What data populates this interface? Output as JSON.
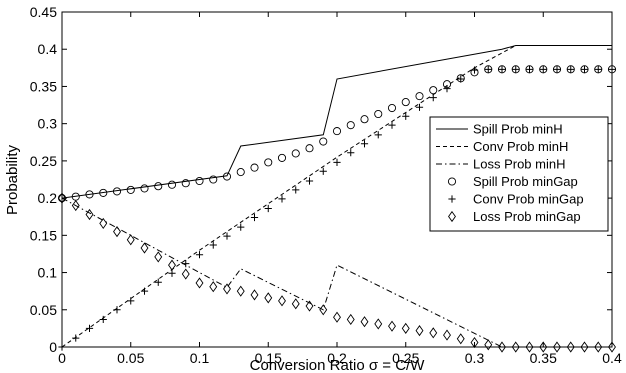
{
  "chart_data": {
    "type": "line",
    "title": "",
    "xlabel": "Conversion Ratio σ = C/W",
    "ylabel": "Probability",
    "xlim": [
      0,
      0.4
    ],
    "ylim": [
      0,
      0.45
    ],
    "grid": false,
    "legend_position": "right",
    "x_ticks": [
      "0",
      "0.05",
      "0.1",
      "0.15",
      "0.2",
      "0.25",
      "0.3",
      "0.35",
      "0.4"
    ],
    "y_ticks": [
      "0",
      "0.05",
      "0.1",
      "0.15",
      "0.2",
      "0.25",
      "0.3",
      "0.35",
      "0.4",
      "0.45"
    ],
    "series": [
      {
        "name": "Spill Prob minH",
        "style": "solid",
        "x": [
          0,
          0.12,
          0.13,
          0.19,
          0.2,
          0.32,
          0.33,
          0.4
        ],
        "y": [
          0.2,
          0.23,
          0.27,
          0.285,
          0.36,
          0.4,
          0.405,
          0.405
        ]
      },
      {
        "name": "Conv Prob minH",
        "style": "dashed",
        "x": [
          0,
          0.1,
          0.2,
          0.3,
          0.33,
          0.4
        ],
        "y": [
          0,
          0.13,
          0.255,
          0.375,
          0.405,
          0.405
        ]
      },
      {
        "name": "Loss Prob minH",
        "style": "dashdot",
        "x": [
          0,
          0.12,
          0.13,
          0.19,
          0.2,
          0.32,
          0.33,
          0.4
        ],
        "y": [
          0.2,
          0.08,
          0.105,
          0.05,
          0.11,
          0,
          0,
          0
        ]
      },
      {
        "name": "Spill Prob minGap",
        "marker": "circle",
        "x": [
          0,
          0.01,
          0.02,
          0.03,
          0.04,
          0.05,
          0.06,
          0.07,
          0.08,
          0.09,
          0.1,
          0.11,
          0.12,
          0.13,
          0.14,
          0.15,
          0.16,
          0.17,
          0.18,
          0.19,
          0.2,
          0.21,
          0.22,
          0.23,
          0.24,
          0.25,
          0.26,
          0.27,
          0.28,
          0.29,
          0.3,
          0.31,
          0.32,
          0.33,
          0.34,
          0.35,
          0.36,
          0.37,
          0.38,
          0.39,
          0.4
        ],
        "y": [
          0.2,
          0.202,
          0.205,
          0.207,
          0.209,
          0.211,
          0.213,
          0.216,
          0.218,
          0.22,
          0.223,
          0.225,
          0.229,
          0.235,
          0.241,
          0.248,
          0.254,
          0.26,
          0.267,
          0.276,
          0.29,
          0.298,
          0.306,
          0.313,
          0.321,
          0.329,
          0.337,
          0.345,
          0.353,
          0.361,
          0.369,
          0.373,
          0.373,
          0.373,
          0.373,
          0.373,
          0.373,
          0.373,
          0.373,
          0.373,
          0.373
        ]
      },
      {
        "name": "Conv Prob minGap",
        "marker": "plus",
        "x": [
          0,
          0.01,
          0.02,
          0.03,
          0.04,
          0.05,
          0.06,
          0.07,
          0.08,
          0.09,
          0.1,
          0.11,
          0.12,
          0.13,
          0.14,
          0.15,
          0.16,
          0.17,
          0.18,
          0.19,
          0.2,
          0.21,
          0.22,
          0.23,
          0.24,
          0.25,
          0.26,
          0.27,
          0.28,
          0.29,
          0.3,
          0.31,
          0.32,
          0.33,
          0.34,
          0.35,
          0.36,
          0.37,
          0.38,
          0.39,
          0.4
        ],
        "y": [
          0.0,
          0.012,
          0.025,
          0.037,
          0.05,
          0.062,
          0.075,
          0.087,
          0.099,
          0.112,
          0.124,
          0.137,
          0.149,
          0.161,
          0.174,
          0.186,
          0.199,
          0.211,
          0.223,
          0.236,
          0.248,
          0.261,
          0.273,
          0.285,
          0.298,
          0.31,
          0.322,
          0.335,
          0.347,
          0.36,
          0.372,
          0.373,
          0.373,
          0.373,
          0.373,
          0.373,
          0.373,
          0.373,
          0.373,
          0.373,
          0.373
        ]
      },
      {
        "name": "Loss Prob minGap",
        "marker": "diamond",
        "x": [
          0,
          0.01,
          0.02,
          0.03,
          0.04,
          0.05,
          0.06,
          0.07,
          0.08,
          0.09,
          0.1,
          0.11,
          0.12,
          0.13,
          0.14,
          0.15,
          0.16,
          0.17,
          0.18,
          0.19,
          0.2,
          0.21,
          0.22,
          0.23,
          0.24,
          0.25,
          0.26,
          0.27,
          0.28,
          0.29,
          0.3,
          0.31,
          0.32,
          0.33,
          0.34,
          0.35,
          0.36,
          0.37,
          0.38,
          0.39,
          0.4
        ],
        "y": [
          0.2,
          0.19,
          0.178,
          0.166,
          0.155,
          0.144,
          0.133,
          0.121,
          0.11,
          0.098,
          0.086,
          0.081,
          0.078,
          0.075,
          0.07,
          0.066,
          0.062,
          0.058,
          0.055,
          0.05,
          0.04,
          0.037,
          0.034,
          0.031,
          0.028,
          0.025,
          0.022,
          0.019,
          0.016,
          0.011,
          0.006,
          0.003,
          0,
          0,
          0,
          0,
          0,
          0,
          0,
          0,
          0
        ]
      }
    ]
  }
}
